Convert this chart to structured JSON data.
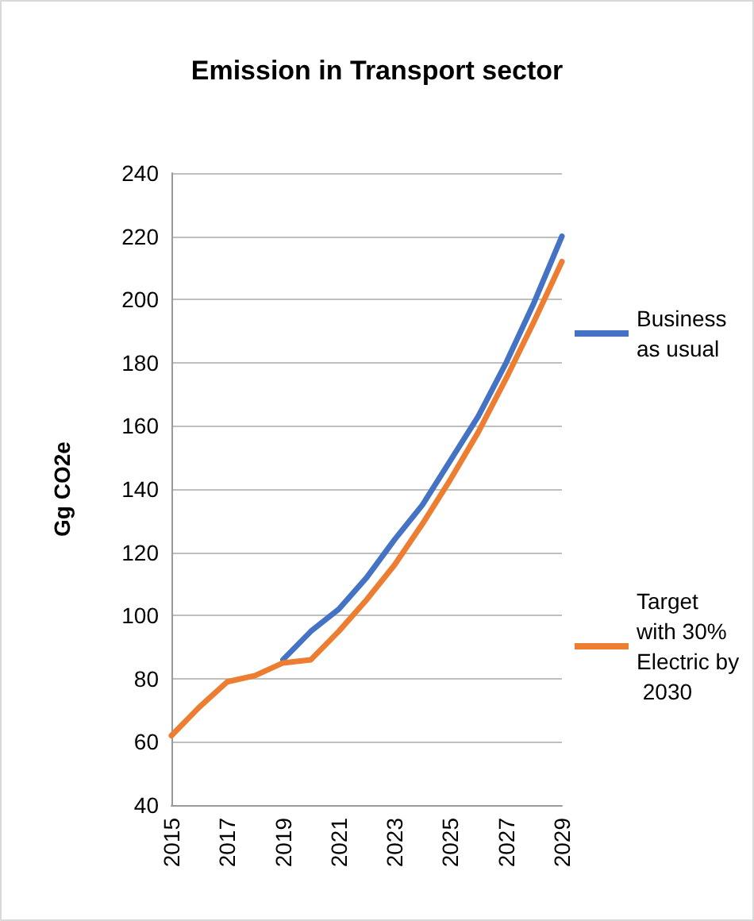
{
  "chart_data": {
    "type": "line",
    "title": "Emission in Transport sector",
    "ylabel": "Gg CO2e",
    "categories": [
      "2015",
      null,
      "2017",
      null,
      "2019",
      null,
      "2021",
      null,
      "2023",
      null,
      "2025",
      null,
      "2027",
      null,
      "2029"
    ],
    "series": [
      {
        "name": "Business as usual",
        "color": "#4472c4",
        "values": [
          null,
          null,
          null,
          null,
          86,
          95,
          102,
          112,
          124,
          135,
          149,
          163,
          180,
          199,
          220
        ]
      },
      {
        "name": "Target with 30% Electric by 2030",
        "color": "#ed7d31",
        "values": [
          62,
          71,
          79,
          81,
          85,
          86,
          95,
          105,
          116,
          129,
          143,
          158,
          175,
          193,
          212
        ]
      }
    ],
    "ylim": [
      40,
      240
    ],
    "yticks": [
      40,
      60,
      80,
      100,
      120,
      140,
      160,
      180,
      200,
      220,
      240
    ],
    "grid": "y",
    "legend": "right",
    "marker": "none",
    "line_style": "solid"
  }
}
